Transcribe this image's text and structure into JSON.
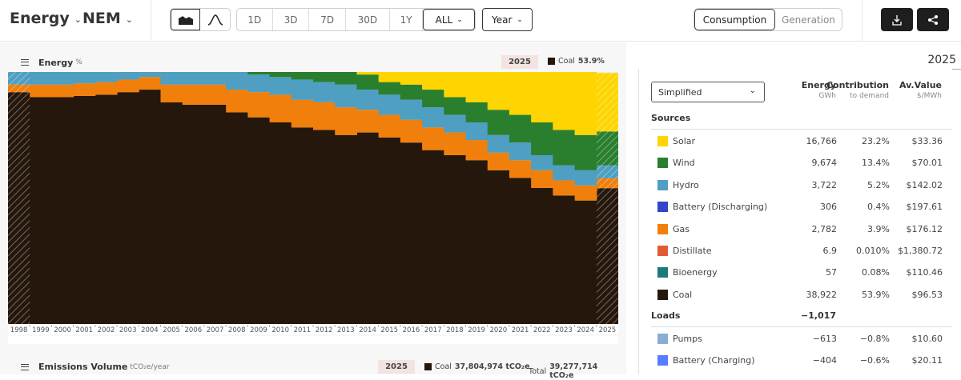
{
  "header": {
    "title": "Energy",
    "region": "NEM",
    "ranges": [
      "1D",
      "3D",
      "7D",
      "30D",
      "1Y",
      "ALL"
    ],
    "selected_range": "ALL",
    "interval": "Year",
    "view_tabs": [
      "Consumption",
      "Generation"
    ],
    "selected_view": "Consumption"
  },
  "panel": {
    "title": "Energy",
    "unit": "%",
    "hover_year": "2025",
    "hover_series": "Coal",
    "hover_value": "53.9%"
  },
  "colors": {
    "Solar": "#FED500",
    "Wind": "#2A7F2E",
    "Hydro": "#4E9FC2",
    "Battery (Discharging)": "#3245C9",
    "Gas": "#F07F0C",
    "Distillate": "#E15C34",
    "Bioenergy": "#1D7A7A",
    "Coal": "#25170C",
    "Pumps": "#88AFD0",
    "Battery (Charging)": "#577CFF"
  },
  "chart_data": {
    "type": "area",
    "stacked": true,
    "unit": "%",
    "x": [
      "1998",
      "1999",
      "2000",
      "2001",
      "2002",
      "2003",
      "2004",
      "2005",
      "2006",
      "2007",
      "2008",
      "2009",
      "2010",
      "2011",
      "2012",
      "2013",
      "2014",
      "2015",
      "2016",
      "2017",
      "2018",
      "2019",
      "2020",
      "2021",
      "2022",
      "2023",
      "2024",
      "2025"
    ],
    "series": [
      {
        "name": "Coal",
        "values": [
          92,
          90,
          90,
          90.5,
          91,
          92,
          93,
          88,
          87,
          87,
          84,
          82,
          80,
          78,
          77,
          75,
          76,
          74,
          72,
          69,
          67,
          65,
          61,
          58,
          54,
          51,
          49,
          53.9
        ]
      },
      {
        "name": "Gas",
        "values": [
          3,
          5,
          5,
          5,
          5,
          5,
          5,
          7,
          8,
          8,
          9,
          10,
          11,
          11,
          11,
          11,
          9,
          9,
          9,
          9,
          9,
          8,
          7,
          7,
          7,
          6,
          6,
          3.9
        ]
      },
      {
        "name": "Hydro",
        "values": [
          5,
          5,
          5,
          4.5,
          4,
          3,
          2,
          5,
          5,
          5,
          7,
          7,
          7,
          8,
          8,
          9,
          8,
          8,
          8,
          8,
          7,
          7,
          7,
          7,
          6,
          6,
          6,
          5.2
        ]
      },
      {
        "name": "Wind",
        "values": [
          0,
          0,
          0,
          0,
          0,
          0,
          0,
          0,
          0,
          0,
          0,
          1,
          2,
          3,
          4,
          5,
          6,
          5,
          6,
          7,
          7,
          8,
          10,
          11,
          13,
          14,
          14,
          13.4
        ]
      },
      {
        "name": "Solar",
        "values": [
          0,
          0,
          0,
          0,
          0,
          0,
          0,
          0,
          0,
          0,
          0,
          0,
          0,
          0,
          0,
          0,
          1,
          4,
          5,
          7,
          10,
          12,
          15,
          17,
          20,
          23,
          25,
          23.2
        ]
      }
    ],
    "ylim": [
      0,
      100
    ],
    "grid": false,
    "legend": "right-table"
  },
  "table": {
    "year": "2025",
    "dropdown": "Simplified",
    "columns": [
      {
        "title": "Energy",
        "unit": "GWh"
      },
      {
        "title": "Contribution",
        "unit": "to demand"
      },
      {
        "title": "Av.Value",
        "unit": "$/MWh"
      }
    ],
    "sources_title": "Sources",
    "sources": [
      {
        "name": "Solar",
        "energy": "16,766",
        "contribution": "23.2%",
        "value": "$33.36"
      },
      {
        "name": "Wind",
        "energy": "9,674",
        "contribution": "13.4%",
        "value": "$70.01"
      },
      {
        "name": "Hydro",
        "energy": "3,722",
        "contribution": "5.2%",
        "value": "$142.02"
      },
      {
        "name": "Battery (Discharging)",
        "energy": "306",
        "contribution": "0.4%",
        "value": "$197.61"
      },
      {
        "name": "Gas",
        "energy": "2,782",
        "contribution": "3.9%",
        "value": "$176.12"
      },
      {
        "name": "Distillate",
        "energy": "6.9",
        "contribution": "0.010%",
        "value": "$1,380.72"
      },
      {
        "name": "Bioenergy",
        "energy": "57",
        "contribution": "0.08%",
        "value": "$110.46"
      },
      {
        "name": "Coal",
        "energy": "38,922",
        "contribution": "53.9%",
        "value": "$96.53"
      }
    ],
    "loads_title": "Loads",
    "loads_total": "−1,017",
    "loads": [
      {
        "name": "Pumps",
        "energy": "−613",
        "contribution": "−0.8%",
        "value": "$10.60"
      },
      {
        "name": "Battery (Charging)",
        "energy": "−404",
        "contribution": "−0.6%",
        "value": "$20.11"
      }
    ]
  },
  "emissions": {
    "title": "Emissions Volume",
    "unit": "tCO₂e/year",
    "year": "2025",
    "series": "Coal",
    "series_value": "37,804,974 tCO₂e",
    "total_label": "Total",
    "total_value": "39,277,714 tCO₂e"
  }
}
